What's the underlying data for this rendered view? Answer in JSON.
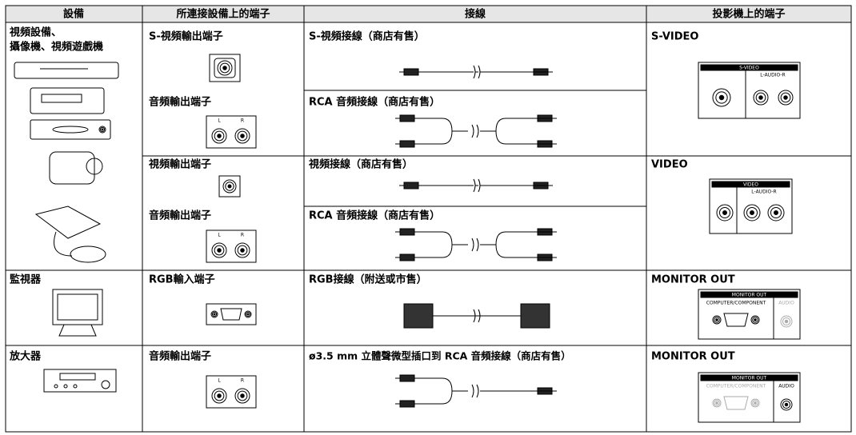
{
  "header": [
    "設備",
    "所連接設備上的端子",
    "接線",
    "投影機上的端子"
  ],
  "devices": [
    {
      "lines": [
        "視頻設備、",
        "攝像機、視頻遊戲機"
      ]
    },
    {
      "lines": [
        "監視器"
      ]
    },
    {
      "lines": [
        "放大器"
      ]
    }
  ],
  "source_terminals": [
    "S-視頻輸出端子",
    "音頻輸出端子",
    "視頻輸出端子",
    "音頻輸出端子",
    "RGB輸入端子",
    "音頻輸出端子"
  ],
  "cables": [
    "S-視頻接線（商店有售）",
    "RCA 音頻接線（商店有售）",
    "視頻接線（商店有售）",
    "RCA 音頻接線（商店有售）",
    "RGB接線（附送或市售）",
    "ø3.5 mm 立體聲微型插口到 RCA 音頻接線（商店有售）"
  ],
  "projector_terminals": [
    {
      "label": "S-VIDEO",
      "panel_title": "S-VIDEO",
      "panel_sub": "L-AUDIO-R"
    },
    {
      "label": "VIDEO",
      "panel_title": "VIDEO",
      "panel_sub": "L-AUDIO-R"
    },
    {
      "label": "MONITOR OUT",
      "panel_title": "MONITOR OUT",
      "panel_left": "COMPUTER/COMPONENT",
      "panel_right": "AUDIO"
    },
    {
      "label": "MONITOR OUT",
      "panel_title": "MONITOR OUT",
      "panel_left": "COMPUTER/COMPONENT",
      "panel_right": "AUDIO"
    }
  ],
  "jack_labels": [
    "L",
    "R"
  ]
}
